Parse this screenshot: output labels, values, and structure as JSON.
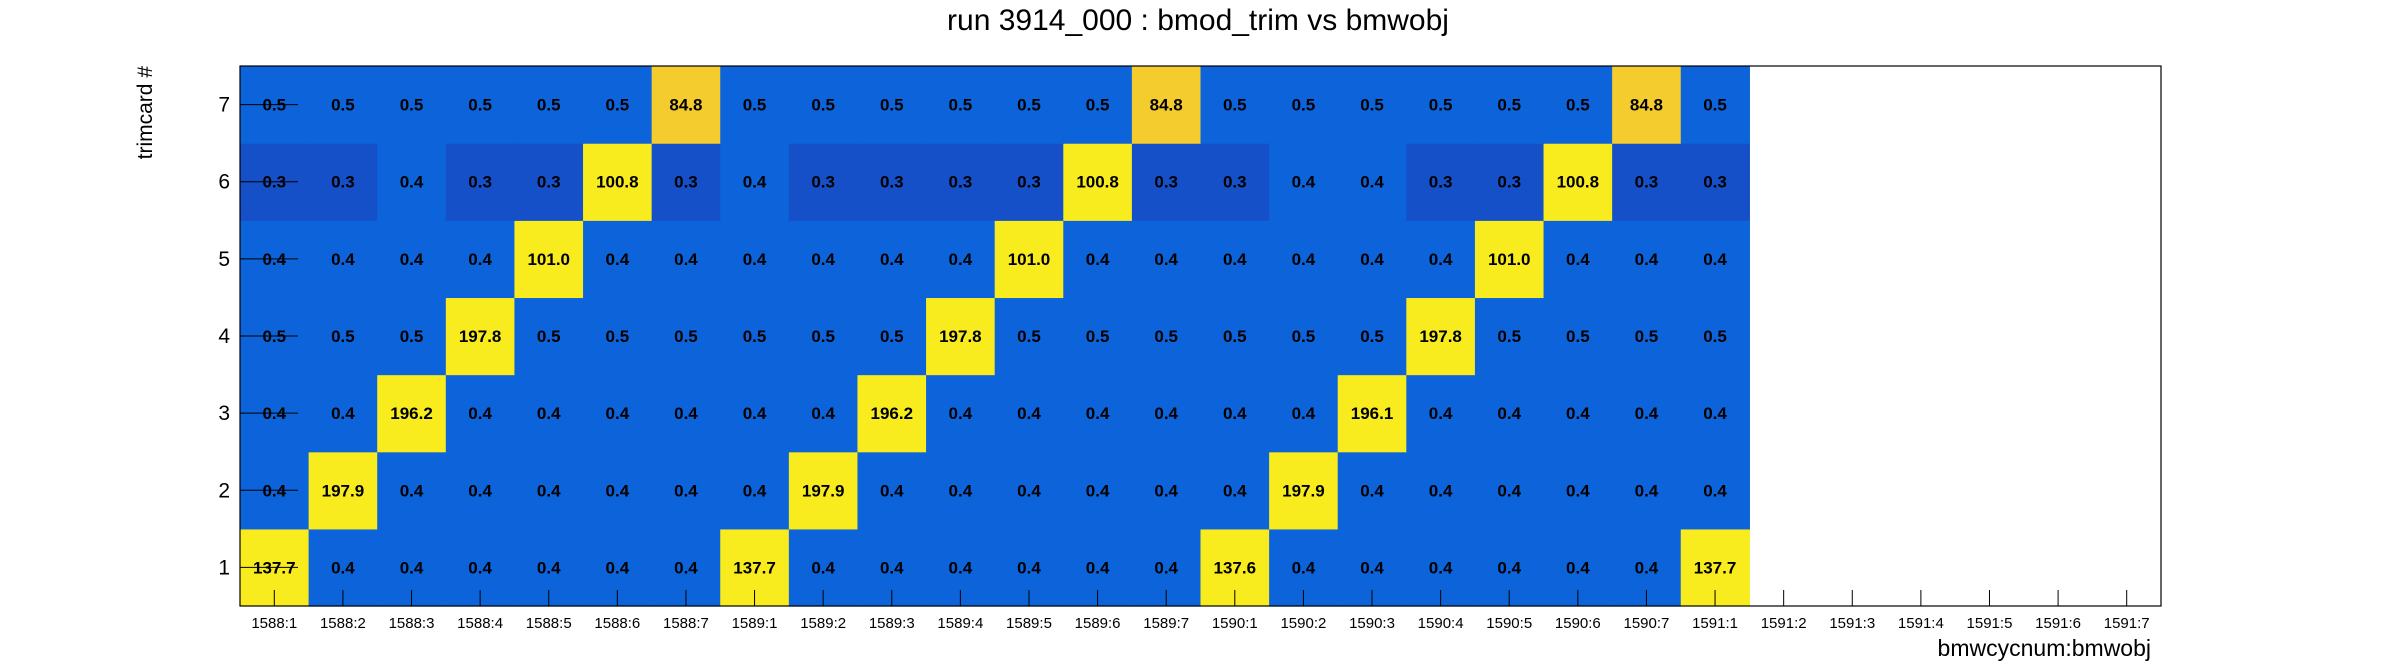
{
  "chart_data": {
    "type": "heatmap",
    "title": "run 3914_000 : bmod_trim vs bmwobj",
    "xlabel": "bmwcycnum:bmwobj",
    "ylabel": "trimcard #",
    "x_categories": [
      "1588:1",
      "1588:2",
      "1588:3",
      "1588:4",
      "1588:5",
      "1588:6",
      "1588:7",
      "1589:1",
      "1589:2",
      "1589:3",
      "1589:4",
      "1589:5",
      "1589:6",
      "1589:7",
      "1590:1",
      "1590:2",
      "1590:3",
      "1590:4",
      "1590:5",
      "1590:6",
      "1590:7",
      "1591:1",
      "1591:2",
      "1591:3",
      "1591:4",
      "1591:5",
      "1591:6",
      "1591:7"
    ],
    "y_categories": [
      "1",
      "2",
      "3",
      "4",
      "5",
      "6",
      "7"
    ],
    "filled_columns": 22,
    "rows": {
      "7": [
        "0.5",
        "0.5",
        "0.5",
        "0.5",
        "0.5",
        "0.5",
        "84.8",
        "0.5",
        "0.5",
        "0.5",
        "0.5",
        "0.5",
        "0.5",
        "84.8",
        "0.5",
        "0.5",
        "0.5",
        "0.5",
        "0.5",
        "0.5",
        "84.8",
        "0.5"
      ],
      "6": [
        "0.3",
        "0.3",
        "0.4",
        "0.3",
        "0.3",
        "100.8",
        "0.3",
        "0.4",
        "0.3",
        "0.3",
        "0.3",
        "0.3",
        "100.8",
        "0.3",
        "0.3",
        "0.4",
        "0.4",
        "0.3",
        "0.3",
        "100.8",
        "0.3",
        "0.3"
      ],
      "5": [
        "0.4",
        "0.4",
        "0.4",
        "0.4",
        "101.0",
        "0.4",
        "0.4",
        "0.4",
        "0.4",
        "0.4",
        "0.4",
        "101.0",
        "0.4",
        "0.4",
        "0.4",
        "0.4",
        "0.4",
        "0.4",
        "101.0",
        "0.4",
        "0.4",
        "0.4"
      ],
      "4": [
        "0.5",
        "0.5",
        "0.5",
        "197.8",
        "0.5",
        "0.5",
        "0.5",
        "0.5",
        "0.5",
        "0.5",
        "197.8",
        "0.5",
        "0.5",
        "0.5",
        "0.5",
        "0.5",
        "0.5",
        "197.8",
        "0.5",
        "0.5",
        "0.5",
        "0.5"
      ],
      "3": [
        "0.4",
        "0.4",
        "196.2",
        "0.4",
        "0.4",
        "0.4",
        "0.4",
        "0.4",
        "0.4",
        "196.2",
        "0.4",
        "0.4",
        "0.4",
        "0.4",
        "0.4",
        "0.4",
        "196.1",
        "0.4",
        "0.4",
        "0.4",
        "0.4",
        "0.4"
      ],
      "2": [
        "0.4",
        "197.9",
        "0.4",
        "0.4",
        "0.4",
        "0.4",
        "0.4",
        "0.4",
        "197.9",
        "0.4",
        "0.4",
        "0.4",
        "0.4",
        "0.4",
        "0.4",
        "197.9",
        "0.4",
        "0.4",
        "0.4",
        "0.4",
        "0.4",
        "0.4"
      ],
      "1": [
        "137.7",
        "0.4",
        "0.4",
        "0.4",
        "0.4",
        "0.4",
        "0.4",
        "137.7",
        "0.4",
        "0.4",
        "0.4",
        "0.4",
        "0.4",
        "0.4",
        "137.6",
        "0.4",
        "0.4",
        "0.4",
        "0.4",
        "0.4",
        "0.4",
        "137.7"
      ]
    },
    "colors": {
      "background_cell": "#0d63d9",
      "low_dark_cell": "#1550c8",
      "mid_high_cell": "#f5cc2e",
      "high_cell": "#f8ec1e",
      "text": "#000000",
      "frame": "#000000"
    }
  }
}
